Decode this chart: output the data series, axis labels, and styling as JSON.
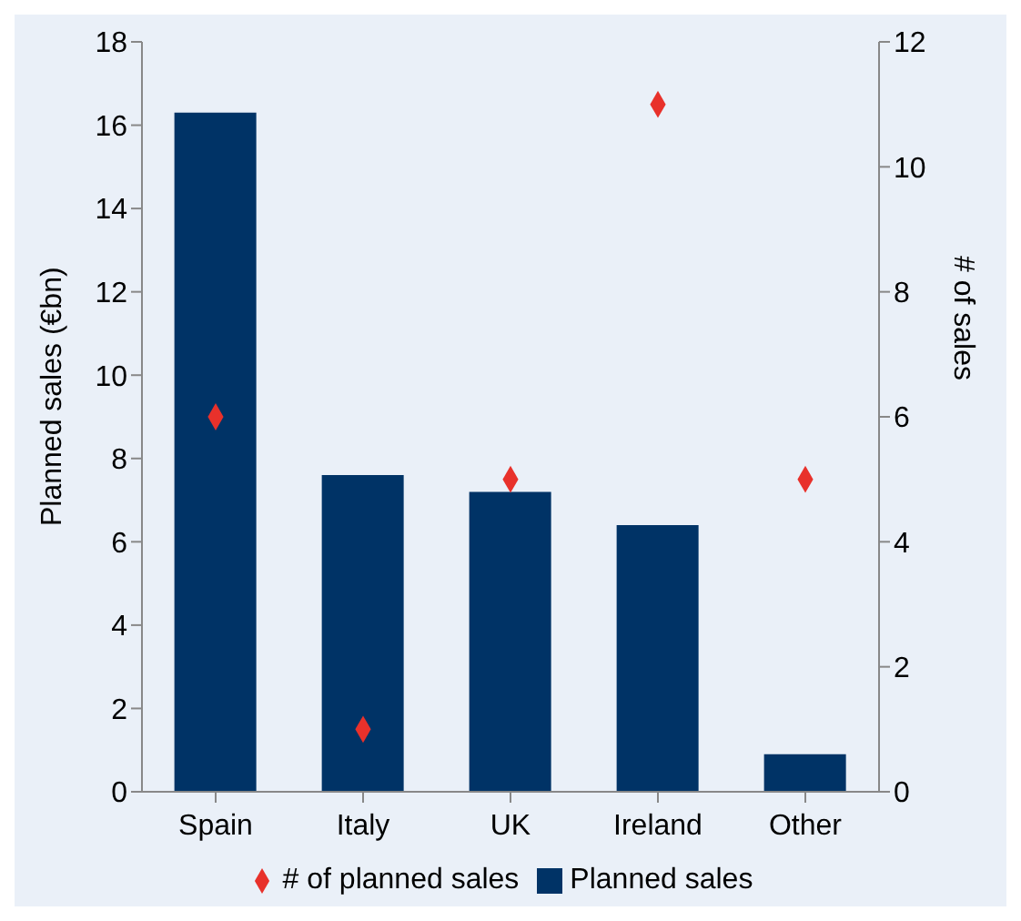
{
  "chart_data": {
    "type": "bar",
    "categories": [
      "Spain",
      "Italy",
      "UK",
      "Ireland",
      "Other"
    ],
    "ylabel": "Planned sales (€bn)",
    "y2label": "# of sales",
    "ylim": [
      0,
      18
    ],
    "yticks": [
      0,
      2,
      4,
      6,
      8,
      10,
      12,
      14,
      16,
      18
    ],
    "y2lim": [
      0,
      12
    ],
    "y2ticks": [
      0,
      2,
      4,
      6,
      8,
      10,
      12
    ],
    "grid": false,
    "legend": "bottom",
    "series": [
      {
        "name": "Planned sales",
        "color": "#003366",
        "values": [
          16.3,
          7.6,
          7.2,
          6.4,
          0.9
        ]
      },
      {
        "name": "# of planned sales",
        "type": "scatter",
        "axis": "y2",
        "marker": "diamond",
        "color": "#e8312b",
        "values": [
          6,
          1,
          5,
          11,
          5
        ]
      }
    ]
  }
}
